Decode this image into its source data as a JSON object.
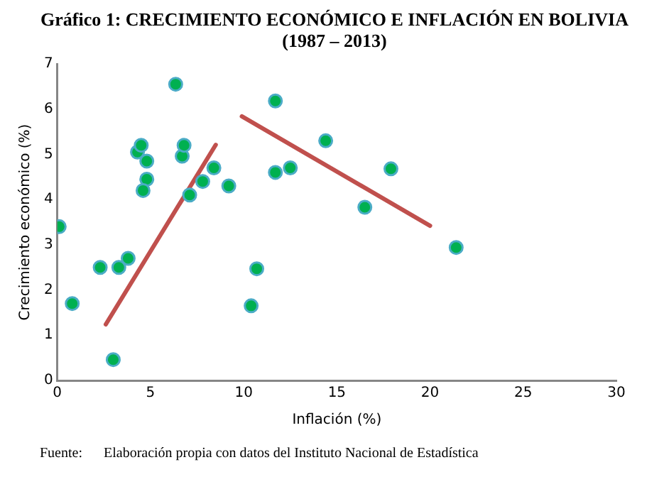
{
  "chart_data": {
    "type": "scatter",
    "title": "Gráfico 1: CRECIMIENTO ECONÓMICO E INFLACIÓN EN BOLIVIA\n(1987 – 2013)",
    "xlabel": "Inflación (%)",
    "ylabel": "Crecimiento económico (%)",
    "annotations": [
      "Fuente:      Elaboración propia con datos del Instituto Nacional de Estadística"
    ],
    "series": [
      {
        "marker": "circle",
        "color": "#00b050",
        "x": [
          0.1,
          0.8,
          2.3,
          3.3,
          3.0,
          3.8,
          4.3,
          4.5,
          4.8,
          4.8,
          4.6,
          6.35,
          6.7,
          6.8,
          7.1,
          7.8,
          8.4,
          9.2,
          10.4,
          10.7,
          11.7,
          11.7,
          12.5,
          14.4,
          16.5,
          17.9,
          21.4
        ],
        "values": [
          3.4,
          1.7,
          2.5,
          2.5,
          0.46,
          2.7,
          5.05,
          5.2,
          4.85,
          4.45,
          4.2,
          6.55,
          4.96,
          5.2,
          4.1,
          4.4,
          4.7,
          4.3,
          1.65,
          2.47,
          6.18,
          4.6,
          4.7,
          5.3,
          3.83,
          4.68,
          2.94
        ]
      },
      {
        "type": "line",
        "marker": "none",
        "color": "#c0504d",
        "x": [
          2.6,
          8.5
        ],
        "values": [
          1.24,
          5.21
        ]
      },
      {
        "type": "line",
        "marker": "none",
        "color": "#c0504d",
        "x": [
          9.9,
          20.0
        ],
        "values": [
          5.84,
          3.42
        ]
      }
    ],
    "xlim": [
      0,
      30
    ],
    "xticks": [
      0,
      5,
      10,
      15,
      20,
      25,
      30
    ],
    "ylim": [
      0,
      7
    ],
    "yticks": [
      0,
      1,
      2,
      3,
      4,
      5,
      6,
      7
    ],
    "grid": false,
    "legend": false
  }
}
